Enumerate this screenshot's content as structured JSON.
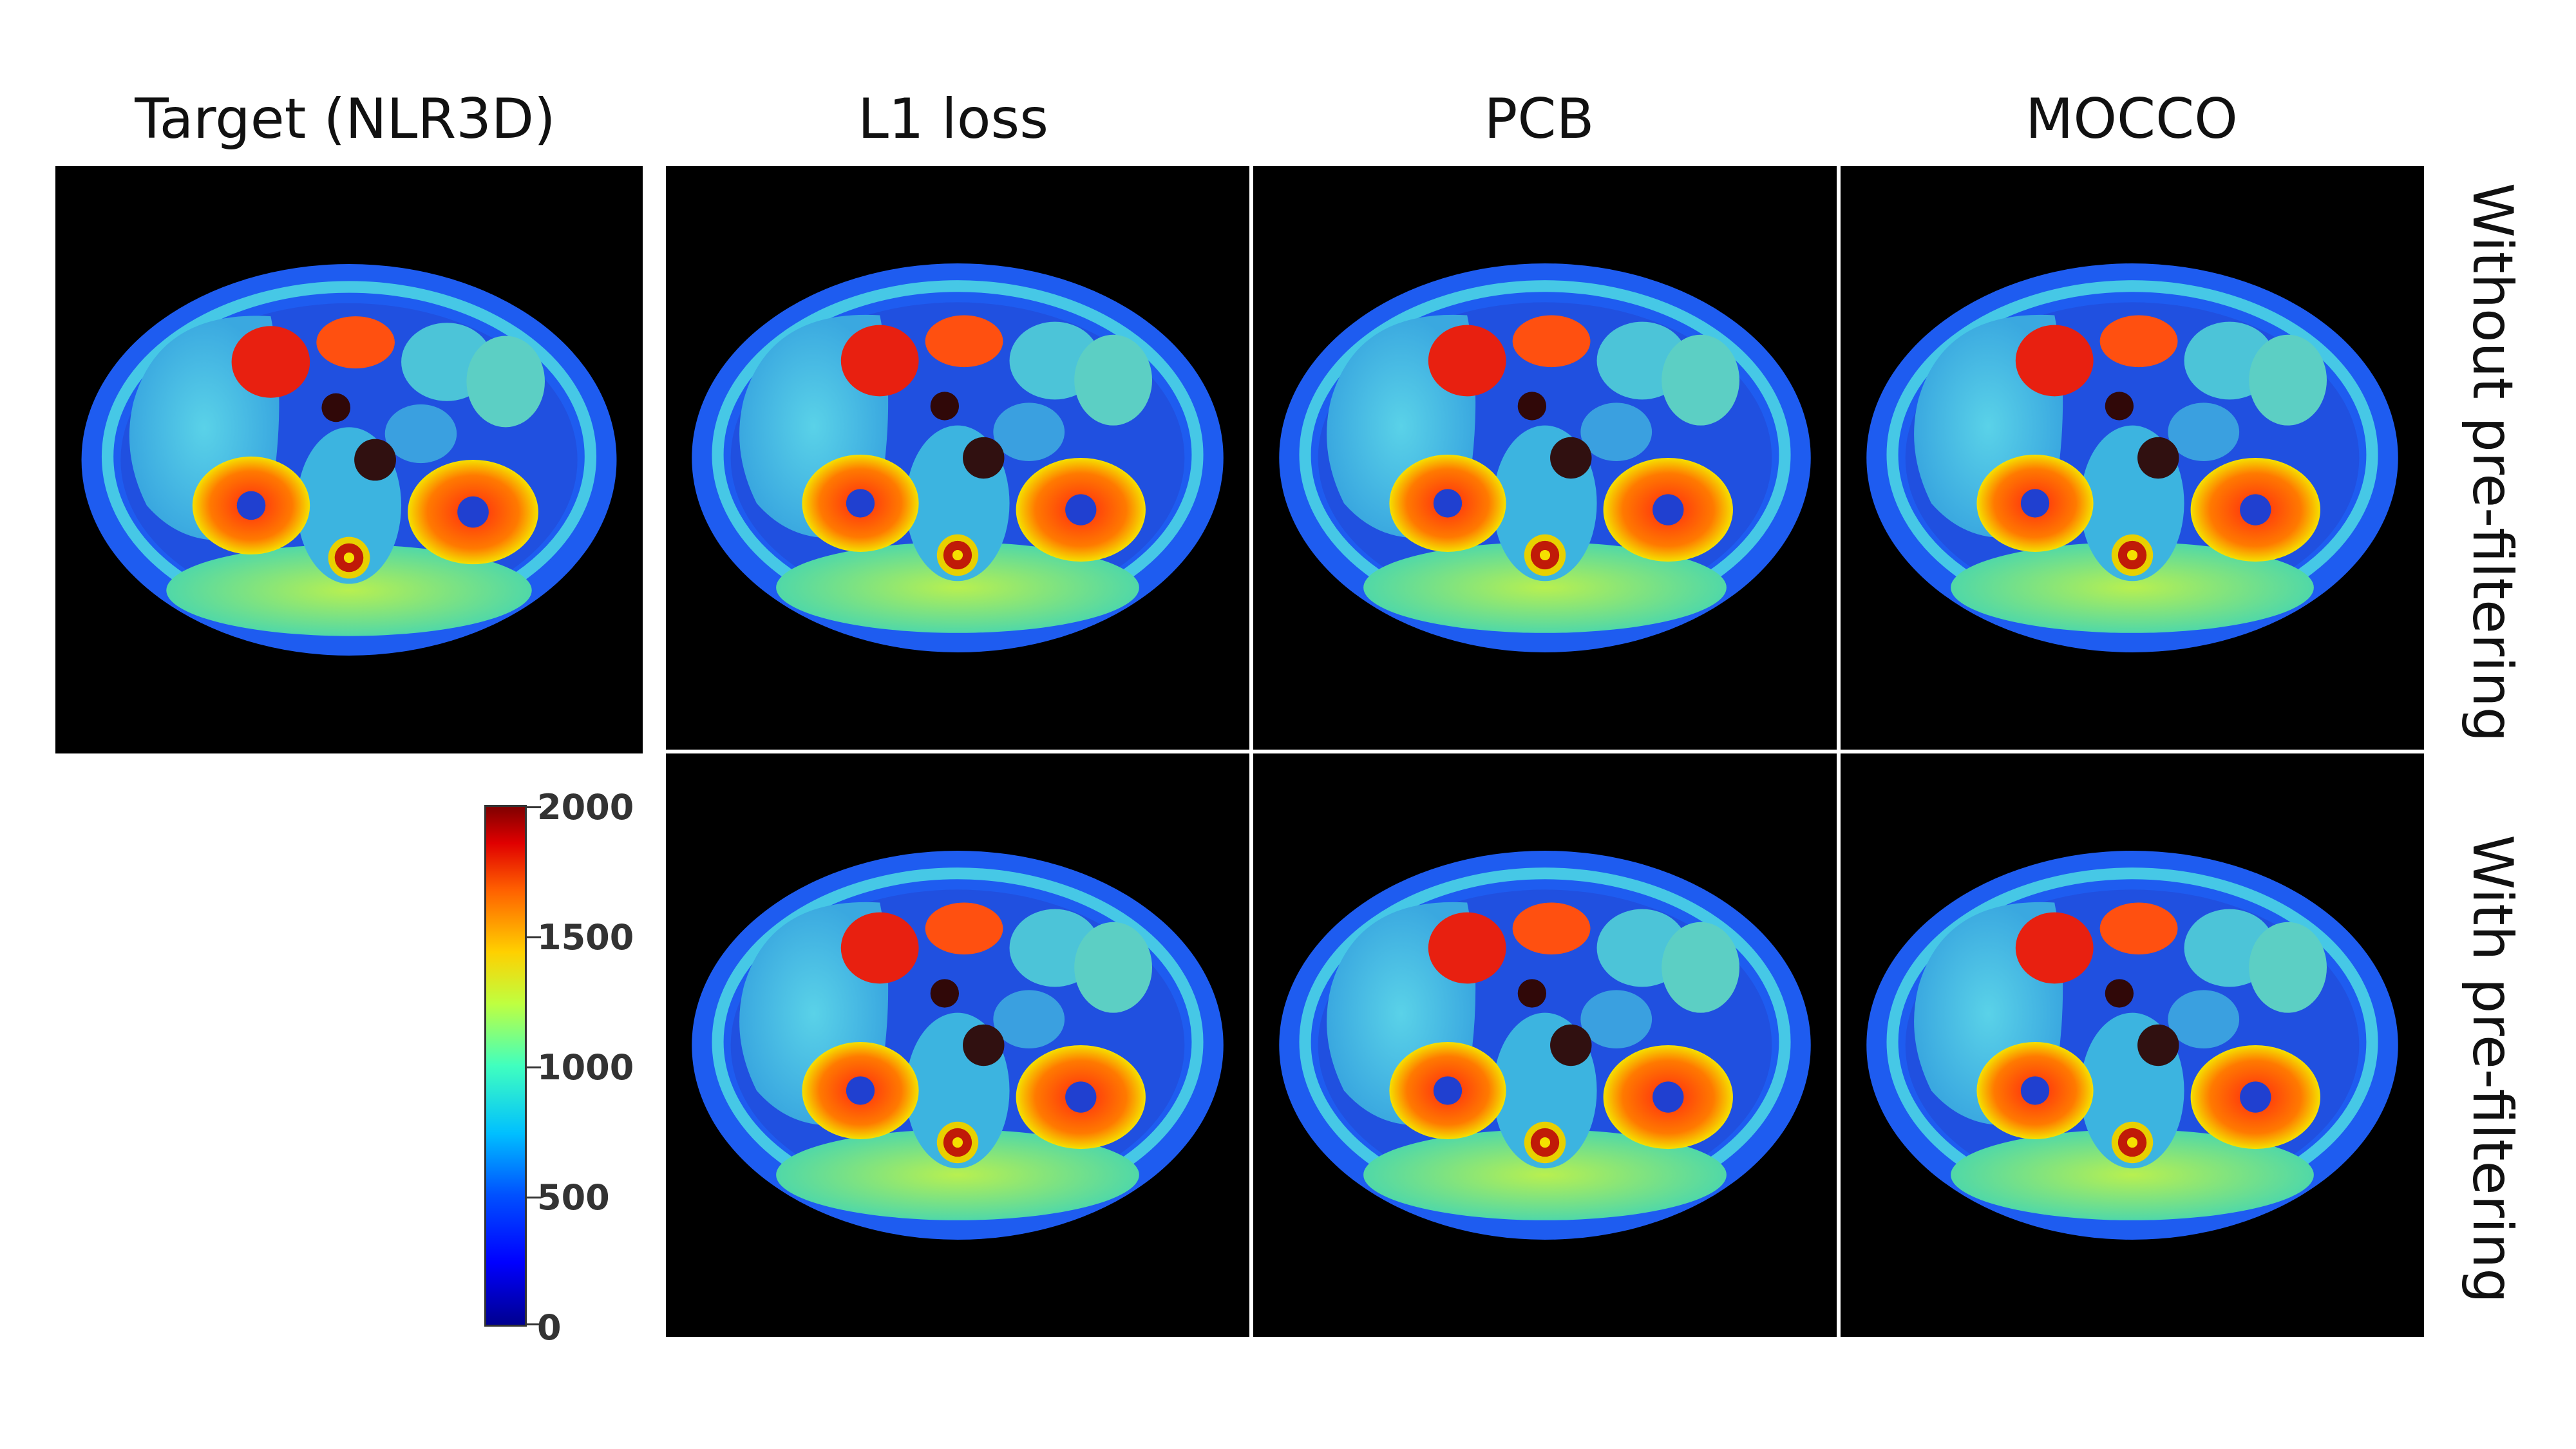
{
  "columns": [
    {
      "id": "target",
      "title": "Target (NLR3D)"
    },
    {
      "id": "l1",
      "title": "L1 loss"
    },
    {
      "id": "pcb",
      "title": "PCB"
    },
    {
      "id": "mocco",
      "title": "MOCCO"
    }
  ],
  "rows": [
    {
      "id": "without",
      "label": "Without pre-filtering"
    },
    {
      "id": "with",
      "label": "With pre-filtering"
    }
  ],
  "colorbar": {
    "min": 0,
    "max": 2000,
    "ticks": [
      "2000",
      "1500",
      "1000",
      "500",
      "0"
    ],
    "colormap": "jet"
  },
  "colors": {
    "background": "#000000",
    "body": "#1e5cf0",
    "organ_high": "#e01a10",
    "tissue_mid": "#40c8b0"
  }
}
